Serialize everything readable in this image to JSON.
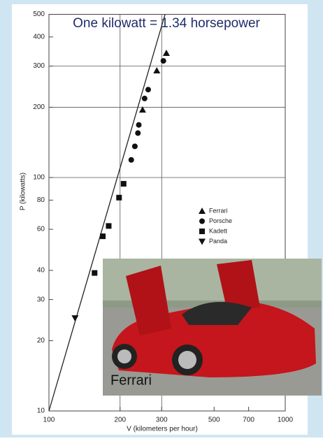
{
  "chart_data": {
    "type": "scatter",
    "title": "One kilowatt = 1.34 horsepower",
    "x_label": "V (kilometers per hour)",
    "y_label": "P (kilowatts)",
    "image_caption": "Ferrari",
    "x_log": true,
    "y_log": true,
    "xlim": [
      100,
      1000
    ],
    "ylim": [
      10,
      500
    ],
    "xticks": [
      100,
      200,
      300,
      500,
      700,
      1000
    ],
    "yticks": [
      10,
      20,
      30,
      40,
      60,
      80,
      100,
      200,
      300,
      400,
      500
    ],
    "xgrid": [
      200,
      300
    ],
    "ygrid": [
      100,
      200,
      300
    ],
    "legend": "right",
    "fit_line": {
      "x": [
        100,
        310
      ],
      "values": [
        10,
        500
      ],
      "color": "#222"
    },
    "series": [
      {
        "name": "Ferrari",
        "marker": "triangle-up",
        "color": "#111",
        "x": [
          249,
          286,
          314
        ],
        "values": [
          195,
          287,
          341
        ]
      },
      {
        "name": "Porsche",
        "marker": "circle",
        "color": "#111",
        "x": [
          223,
          231,
          238,
          240,
          254,
          263,
          305
        ],
        "values": [
          119,
          136,
          155,
          168,
          218,
          238,
          316
        ]
      },
      {
        "name": "Kadett",
        "marker": "square",
        "color": "#111",
        "x": [
          156,
          169,
          179,
          198,
          207
        ],
        "values": [
          39,
          56,
          62,
          82,
          94
        ]
      },
      {
        "name": "Panda",
        "marker": "triangle-down",
        "color": "#111",
        "x": [
          129
        ],
        "values": [
          25
        ]
      }
    ]
  }
}
